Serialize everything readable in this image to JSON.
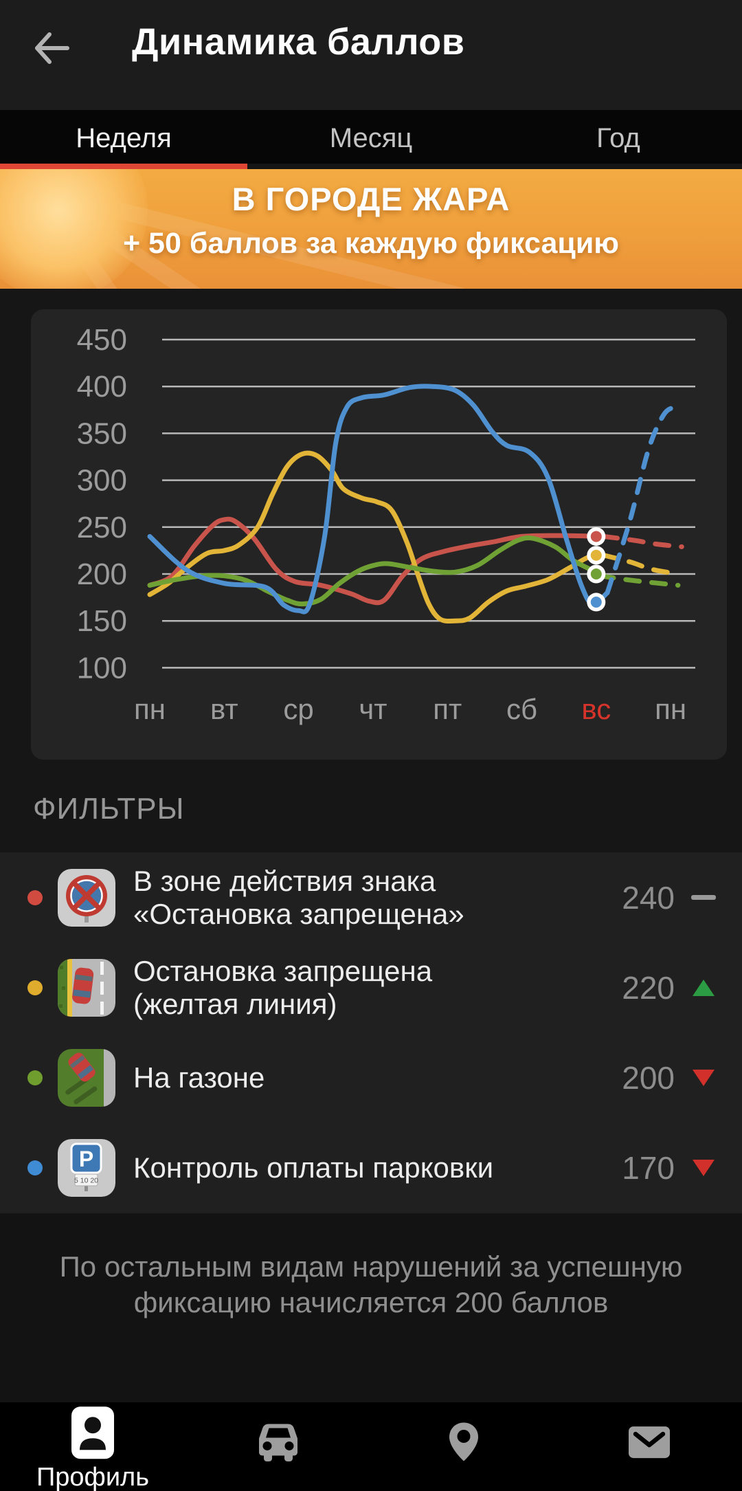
{
  "header": {
    "title": "Динамика баллов"
  },
  "tabs": [
    {
      "label": "Неделя",
      "active": true
    },
    {
      "label": "Месяц",
      "active": false
    },
    {
      "label": "Год",
      "active": false
    }
  ],
  "banner": {
    "title": "В ГОРОДЕ ЖАРА",
    "subtitle": "+ 50 баллов за каждую фиксацию",
    "accent_top": "#f3ab42",
    "accent_bottom": "#ea9138"
  },
  "chart_data": {
    "type": "line",
    "title": "",
    "xlabel": "",
    "ylabel": "",
    "x_labels": [
      "пн",
      "вт",
      "ср",
      "чт",
      "пт",
      "сб",
      "вс",
      "пн"
    ],
    "highlight_x_index": 6,
    "highlight_color": "#d6342b",
    "y_ticks": [
      450,
      400,
      350,
      300,
      250,
      200,
      150,
      100
    ],
    "ylim": [
      100,
      450
    ],
    "grid_color": "#c9c9c9",
    "label_color": "#9c9c9c",
    "legend_position": "none",
    "note": "solid line = пн..вс actuals, dashed = forecast to next пн; dot marks value at вс",
    "series": [
      {
        "name": "В зоне действия знака «Остановка запрещена»",
        "color": "#c8544b",
        "values_by_day": [
          190,
          258,
          188,
          171,
          227,
          240,
          240
        ],
        "end_value": 240,
        "forecast_next": 229,
        "shape": [
          [
            0,
            188
          ],
          [
            0.3,
            198
          ],
          [
            0.6,
            230
          ],
          [
            0.85,
            252
          ],
          [
            1,
            258
          ],
          [
            1.15,
            256
          ],
          [
            1.4,
            238
          ],
          [
            1.7,
            205
          ],
          [
            1.95,
            192
          ],
          [
            2.3,
            188
          ],
          [
            2.7,
            179
          ],
          [
            2.95,
            171
          ],
          [
            3.15,
            172
          ],
          [
            3.4,
            198
          ],
          [
            3.65,
            216
          ],
          [
            3.95,
            224
          ],
          [
            4.3,
            230
          ],
          [
            4.6,
            234
          ],
          [
            5,
            240
          ],
          [
            5.5,
            241
          ],
          [
            6.1,
            240
          ]
        ],
        "forecast_shape": [
          [
            6.1,
            240
          ],
          [
            6.5,
            236
          ],
          [
            6.8,
            232
          ],
          [
            7.15,
            229
          ]
        ]
      },
      {
        "name": "Остановка запрещена (желтая линия)",
        "color": "#e2b437",
        "values_by_day": [
          178,
          225,
          328,
          277,
          150,
          187,
          220
        ],
        "end_value": 220,
        "forecast_next": 200,
        "shape": [
          [
            0,
            178
          ],
          [
            0.25,
            190
          ],
          [
            0.5,
            207
          ],
          [
            0.77,
            222
          ],
          [
            1,
            225
          ],
          [
            1.2,
            231
          ],
          [
            1.45,
            250
          ],
          [
            1.65,
            285
          ],
          [
            1.85,
            315
          ],
          [
            2.05,
            328
          ],
          [
            2.25,
            326
          ],
          [
            2.45,
            310
          ],
          [
            2.6,
            291
          ],
          [
            2.85,
            281
          ],
          [
            3.05,
            277
          ],
          [
            3.25,
            268
          ],
          [
            3.45,
            235
          ],
          [
            3.6,
            200
          ],
          [
            3.75,
            168
          ],
          [
            3.9,
            152
          ],
          [
            4.1,
            150
          ],
          [
            4.3,
            153
          ],
          [
            4.55,
            170
          ],
          [
            4.8,
            182
          ],
          [
            5.05,
            187
          ],
          [
            5.35,
            194
          ],
          [
            5.65,
            207
          ],
          [
            5.9,
            218
          ],
          [
            6.1,
            220
          ]
        ],
        "forecast_shape": [
          [
            6.1,
            220
          ],
          [
            6.45,
            213
          ],
          [
            6.75,
            205
          ],
          [
            7.1,
            200
          ]
        ]
      },
      {
        "name": "На газоне",
        "color": "#6fa134",
        "values_by_day": [
          188,
          198,
          168,
          209,
          202,
          237,
          200
        ],
        "end_value": 200,
        "forecast_next": 188,
        "shape": [
          [
            0,
            188
          ],
          [
            0.35,
            194
          ],
          [
            0.7,
            198
          ],
          [
            1,
            198
          ],
          [
            1.3,
            193
          ],
          [
            1.6,
            181
          ],
          [
            1.85,
            172
          ],
          [
            2.05,
            168
          ],
          [
            2.3,
            173
          ],
          [
            2.55,
            190
          ],
          [
            2.8,
            203
          ],
          [
            3,
            209
          ],
          [
            3.2,
            211
          ],
          [
            3.5,
            207
          ],
          [
            3.8,
            203
          ],
          [
            4.1,
            202
          ],
          [
            4.4,
            209
          ],
          [
            4.7,
            225
          ],
          [
            4.95,
            236
          ],
          [
            5.15,
            238
          ],
          [
            5.45,
            229
          ],
          [
            5.7,
            214
          ],
          [
            6.05,
            200
          ]
        ],
        "forecast_shape": [
          [
            6.05,
            198
          ],
          [
            6.5,
            193
          ],
          [
            7.1,
            188
          ]
        ]
      },
      {
        "name": "Контроль оплаты парковки",
        "color": "#4e90d0",
        "values_by_day": [
          240,
          190,
          161,
          390,
          400,
          330,
          170
        ],
        "end_value": 170,
        "forecast_next": 378,
        "shape": [
          [
            0,
            240
          ],
          [
            0.5,
            204
          ],
          [
            1,
            190
          ],
          [
            1.55,
            186
          ],
          [
            1.8,
            167
          ],
          [
            2,
            161
          ],
          [
            2.15,
            168
          ],
          [
            2.35,
            240
          ],
          [
            2.5,
            340
          ],
          [
            2.65,
            378
          ],
          [
            2.85,
            388
          ],
          [
            3.15,
            391
          ],
          [
            3.5,
            399
          ],
          [
            3.8,
            400
          ],
          [
            4.1,
            396
          ],
          [
            4.35,
            380
          ],
          [
            4.6,
            352
          ],
          [
            4.8,
            337
          ],
          [
            5.1,
            330
          ],
          [
            5.35,
            303
          ],
          [
            5.6,
            237
          ],
          [
            5.8,
            188
          ],
          [
            5.95,
            168
          ],
          [
            6.15,
            180
          ]
        ],
        "forecast_shape": [
          [
            6.15,
            180
          ],
          [
            6.45,
            256
          ],
          [
            6.7,
            332
          ],
          [
            6.9,
            369
          ],
          [
            7.05,
            378
          ],
          [
            7.15,
            379
          ]
        ]
      }
    ]
  },
  "filters": {
    "heading": "ФИЛЬТРЫ",
    "items": [
      {
        "line1": "В зоне действия знака",
        "line2": "«Остановка запрещена»",
        "value": "240",
        "trend": "flat",
        "color": "#d24b41",
        "icon": "no-stopping-sign"
      },
      {
        "line1": "Остановка запрещена",
        "line2": "(желтая линия)",
        "value": "220",
        "trend": "up",
        "color": "#dfac2e",
        "icon": "yellow-line"
      },
      {
        "line1": "На газоне",
        "line2": "",
        "value": "200",
        "trend": "down",
        "color": "#6f9d2e",
        "icon": "lawn"
      },
      {
        "line1": "Контроль оплаты парковки",
        "line2": "",
        "value": "170",
        "trend": "down",
        "color": "#3f8bd4",
        "icon": "parking"
      }
    ]
  },
  "footnote": {
    "line1": "По остальным видам нарушений за успешную",
    "line2": "фиксацию начисляется 200 баллов"
  },
  "nav": {
    "items": [
      {
        "label": "Профиль",
        "icon": "profile",
        "active": true
      },
      {
        "label": "",
        "icon": "car",
        "active": false
      },
      {
        "label": "",
        "icon": "pin",
        "active": false
      },
      {
        "label": "",
        "icon": "mail",
        "active": false
      }
    ]
  },
  "parking_icon_plate": "5 10 20"
}
